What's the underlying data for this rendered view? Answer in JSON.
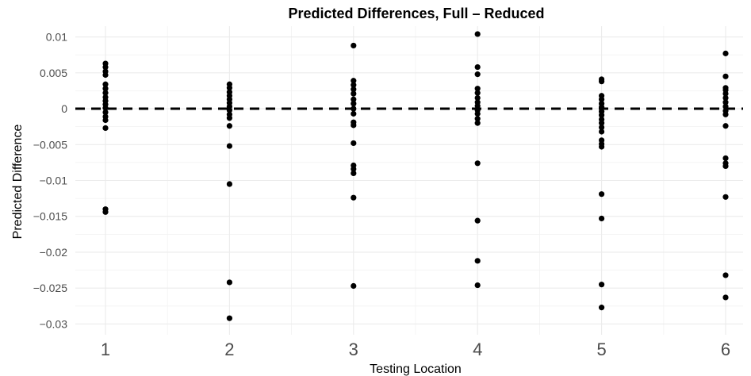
{
  "chart_data": {
    "type": "scatter",
    "title": "Predicted Differences, Full – Reduced",
    "xlabel": "Testing Location",
    "ylabel": "Predicted Difference",
    "x_ticks": [
      "1",
      "2",
      "3",
      "4",
      "5",
      "6"
    ],
    "y_ticks": [
      {
        "value": 0.01,
        "label": "0.01"
      },
      {
        "value": 0.005,
        "label": "0.005"
      },
      {
        "value": 0,
        "label": "0"
      },
      {
        "value": -0.005,
        "label": "−0.005"
      },
      {
        "value": -0.01,
        "label": "−0.01"
      },
      {
        "value": -0.015,
        "label": "−0.015"
      },
      {
        "value": -0.02,
        "label": "−0.02"
      },
      {
        "value": -0.025,
        "label": "−0.025"
      },
      {
        "value": -0.03,
        "label": "−0.03"
      }
    ],
    "xlim": [
      0.5,
      6.5
    ],
    "ylim": [
      -0.0315,
      0.0115
    ],
    "grid": true,
    "reference_line": {
      "y": 0,
      "style": "dashed",
      "color": "#000000"
    },
    "point_color": "#000000",
    "series": [
      {
        "points": [
          {
            "x": 1,
            "y": 0.0063
          },
          {
            "x": 1,
            "y": 0.0058
          },
          {
            "x": 1,
            "y": 0.0052
          },
          {
            "x": 1,
            "y": 0.0047
          },
          {
            "x": 1,
            "y": 0.0034
          },
          {
            "x": 1,
            "y": 0.0028
          },
          {
            "x": 1,
            "y": 0.0022
          },
          {
            "x": 1,
            "y": 0.0016
          },
          {
            "x": 1,
            "y": 0.0011
          },
          {
            "x": 1,
            "y": 0.0006
          },
          {
            "x": 1,
            "y": 0.0001
          },
          {
            "x": 1,
            "y": -0.0005
          },
          {
            "x": 1,
            "y": -0.0011
          },
          {
            "x": 1,
            "y": -0.0016
          },
          {
            "x": 1,
            "y": -0.0027
          },
          {
            "x": 1,
            "y": -0.014
          },
          {
            "x": 1,
            "y": -0.0144
          },
          {
            "x": 2,
            "y": 0.0034
          },
          {
            "x": 2,
            "y": 0.0029
          },
          {
            "x": 2,
            "y": 0.0023
          },
          {
            "x": 2,
            "y": 0.0018
          },
          {
            "x": 2,
            "y": 0.0013
          },
          {
            "x": 2,
            "y": 0.0008
          },
          {
            "x": 2,
            "y": 0.0003
          },
          {
            "x": 2,
            "y": -0.0002
          },
          {
            "x": 2,
            "y": -0.0008
          },
          {
            "x": 2,
            "y": -0.0013
          },
          {
            "x": 2,
            "y": -0.0024
          },
          {
            "x": 2,
            "y": -0.0052
          },
          {
            "x": 2,
            "y": -0.0105
          },
          {
            "x": 2,
            "y": -0.0242
          },
          {
            "x": 2,
            "y": -0.0292
          },
          {
            "x": 3,
            "y": 0.0088
          },
          {
            "x": 3,
            "y": 0.0039
          },
          {
            "x": 3,
            "y": 0.0033
          },
          {
            "x": 3,
            "y": 0.0027
          },
          {
            "x": 3,
            "y": 0.0021
          },
          {
            "x": 3,
            "y": 0.0013
          },
          {
            "x": 3,
            "y": 0.0007
          },
          {
            "x": 3,
            "y": 0.0
          },
          {
            "x": 3,
            "y": -0.0007
          },
          {
            "x": 3,
            "y": -0.0019
          },
          {
            "x": 3,
            "y": -0.0023
          },
          {
            "x": 3,
            "y": -0.0048
          },
          {
            "x": 3,
            "y": -0.0079
          },
          {
            "x": 3,
            "y": -0.0084
          },
          {
            "x": 3,
            "y": -0.009
          },
          {
            "x": 3,
            "y": -0.0124
          },
          {
            "x": 3,
            "y": -0.0247
          },
          {
            "x": 4,
            "y": 0.0104
          },
          {
            "x": 4,
            "y": 0.0058
          },
          {
            "x": 4,
            "y": 0.0048
          },
          {
            "x": 4,
            "y": 0.0028
          },
          {
            "x": 4,
            "y": 0.0022
          },
          {
            "x": 4,
            "y": 0.0015
          },
          {
            "x": 4,
            "y": 0.0009
          },
          {
            "x": 4,
            "y": 0.0004
          },
          {
            "x": 4,
            "y": -0.0002
          },
          {
            "x": 4,
            "y": -0.0007
          },
          {
            "x": 4,
            "y": -0.0014
          },
          {
            "x": 4,
            "y": -0.002
          },
          {
            "x": 4,
            "y": -0.0076
          },
          {
            "x": 4,
            "y": -0.0156
          },
          {
            "x": 4,
            "y": -0.0212
          },
          {
            "x": 4,
            "y": -0.0246
          },
          {
            "x": 5,
            "y": 0.0041
          },
          {
            "x": 5,
            "y": 0.0038
          },
          {
            "x": 5,
            "y": 0.0018
          },
          {
            "x": 5,
            "y": 0.0013
          },
          {
            "x": 5,
            "y": 0.0007
          },
          {
            "x": 5,
            "y": 0.0002
          },
          {
            "x": 5,
            "y": -0.0004
          },
          {
            "x": 5,
            "y": -0.0009
          },
          {
            "x": 5,
            "y": -0.0015
          },
          {
            "x": 5,
            "y": -0.002
          },
          {
            "x": 5,
            "y": -0.0026
          },
          {
            "x": 5,
            "y": -0.0032
          },
          {
            "x": 5,
            "y": -0.0044
          },
          {
            "x": 5,
            "y": -0.0049
          },
          {
            "x": 5,
            "y": -0.0053
          },
          {
            "x": 5,
            "y": -0.0119
          },
          {
            "x": 5,
            "y": -0.0153
          },
          {
            "x": 5,
            "y": -0.0245
          },
          {
            "x": 5,
            "y": -0.0277
          },
          {
            "x": 6,
            "y": 0.0077
          },
          {
            "x": 6,
            "y": 0.0045
          },
          {
            "x": 6,
            "y": 0.0029
          },
          {
            "x": 6,
            "y": 0.0026
          },
          {
            "x": 6,
            "y": 0.0021
          },
          {
            "x": 6,
            "y": 0.0015
          },
          {
            "x": 6,
            "y": 0.0009
          },
          {
            "x": 6,
            "y": 0.0003
          },
          {
            "x": 6,
            "y": -0.0003
          },
          {
            "x": 6,
            "y": -0.0008
          },
          {
            "x": 6,
            "y": -0.0024
          },
          {
            "x": 6,
            "y": -0.0069
          },
          {
            "x": 6,
            "y": -0.0076
          },
          {
            "x": 6,
            "y": -0.008
          },
          {
            "x": 6,
            "y": -0.0123
          },
          {
            "x": 6,
            "y": -0.0232
          },
          {
            "x": 6,
            "y": -0.0263
          }
        ]
      }
    ]
  }
}
